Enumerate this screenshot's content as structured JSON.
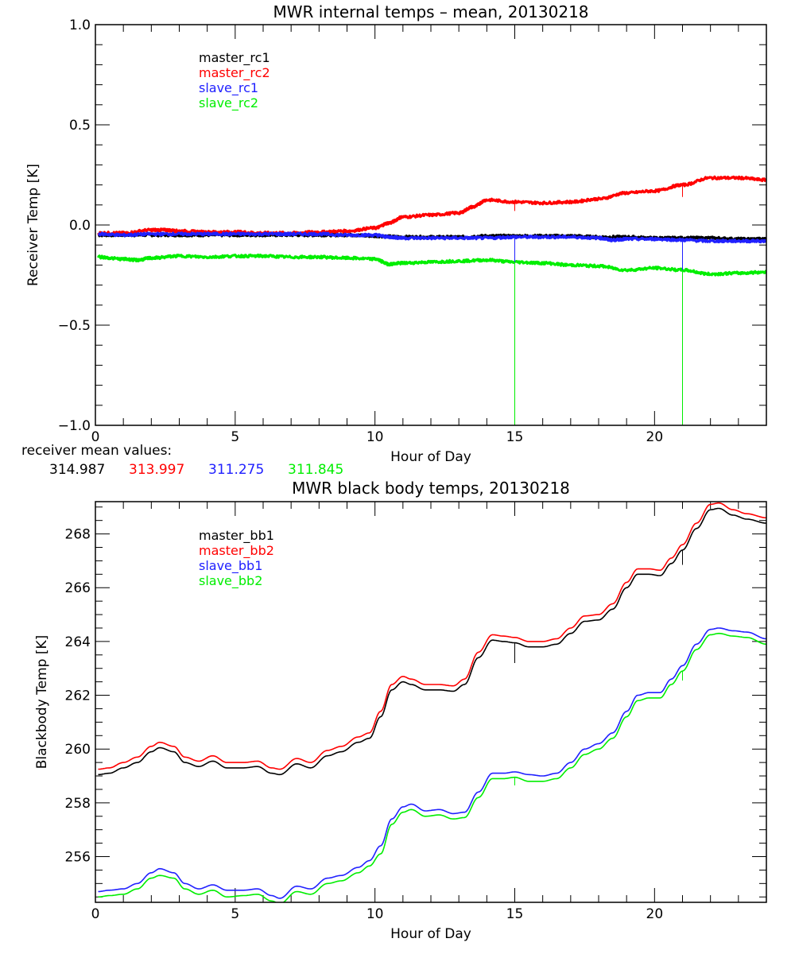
{
  "chart_data": [
    {
      "type": "line",
      "id": "receiver",
      "title": "MWR internal temps – mean, 20130218",
      "xlabel": "Hour of Day",
      "ylabel": "Receiver Temp [K]",
      "xlim": [
        0,
        24
      ],
      "ylim": [
        -1.0,
        1.0
      ],
      "xticks": [
        0,
        5,
        10,
        15,
        20
      ],
      "xtick_labels": [
        "0",
        "5",
        "10",
        "15",
        "20"
      ],
      "yticks": [
        1.0,
        0.5,
        0.0,
        -0.5,
        -1.0
      ],
      "ytick_labels": [
        "1.0",
        "0.5",
        "0.0",
        "−0.5",
        "−1.0"
      ],
      "grid": false,
      "legend_position": "top-left",
      "series": [
        {
          "name": "master_rc1",
          "color": "#000000",
          "x": [
            0.1,
            1,
            2,
            3,
            4,
            5,
            6,
            7,
            8,
            9,
            10,
            11,
            12,
            13,
            14,
            15,
            16,
            17,
            18,
            19,
            20,
            21,
            22,
            23,
            24
          ],
          "y": [
            -0.05,
            -0.05,
            -0.05,
            -0.05,
            -0.05,
            -0.05,
            -0.05,
            -0.05,
            -0.05,
            -0.05,
            -0.055,
            -0.06,
            -0.06,
            -0.06,
            -0.055,
            -0.055,
            -0.055,
            -0.055,
            -0.06,
            -0.06,
            -0.065,
            -0.065,
            -0.065,
            -0.07,
            -0.07
          ]
        },
        {
          "name": "master_rc2",
          "color": "#ff0000",
          "x": [
            0.1,
            1,
            2,
            2.5,
            3,
            4,
            5,
            6,
            7,
            8,
            9,
            10,
            10.5,
            11,
            12,
            13,
            13.5,
            14,
            15,
            16,
            17,
            18,
            19,
            20,
            21,
            22,
            23,
            24
          ],
          "y": [
            -0.04,
            -0.04,
            -0.025,
            -0.025,
            -0.03,
            -0.035,
            -0.035,
            -0.04,
            -0.04,
            -0.035,
            -0.03,
            -0.015,
            0.01,
            0.04,
            0.05,
            0.06,
            0.09,
            0.125,
            0.115,
            0.11,
            0.115,
            0.13,
            0.16,
            0.17,
            0.2,
            0.235,
            0.235,
            0.225
          ]
        },
        {
          "name": "slave_rc1",
          "color": "#2020ff",
          "x": [
            0.1,
            1,
            2,
            3,
            4,
            5,
            6,
            7,
            8,
            9,
            10,
            10.5,
            11,
            12,
            13,
            14,
            15,
            16,
            17,
            18,
            18.5,
            19,
            20,
            21,
            22,
            23,
            24
          ],
          "y": [
            -0.045,
            -0.05,
            -0.045,
            -0.045,
            -0.045,
            -0.045,
            -0.045,
            -0.045,
            -0.045,
            -0.05,
            -0.05,
            -0.06,
            -0.065,
            -0.065,
            -0.065,
            -0.065,
            -0.06,
            -0.06,
            -0.06,
            -0.065,
            -0.075,
            -0.07,
            -0.07,
            -0.075,
            -0.08,
            -0.08,
            -0.08
          ]
        },
        {
          "name": "slave_rc2",
          "color": "#00ee00",
          "x": [
            0.1,
            1,
            1.5,
            2,
            3,
            4,
            5,
            6,
            7,
            8,
            9,
            10,
            10.5,
            11,
            12,
            13,
            14,
            15,
            16,
            17,
            18,
            19,
            20,
            21,
            22,
            23,
            24
          ],
          "y": [
            -0.16,
            -0.17,
            -0.175,
            -0.165,
            -0.155,
            -0.16,
            -0.155,
            -0.155,
            -0.16,
            -0.16,
            -0.165,
            -0.17,
            -0.195,
            -0.19,
            -0.185,
            -0.18,
            -0.175,
            -0.185,
            -0.19,
            -0.2,
            -0.205,
            -0.225,
            -0.215,
            -0.225,
            -0.245,
            -0.24,
            -0.235
          ]
        }
      ],
      "spikes": [
        {
          "series": "master_rc2",
          "x": 15.0,
          "y_from": 0.115,
          "y_to": 0.07
        },
        {
          "series": "master_rc2",
          "x": 21.0,
          "y_from": 0.2,
          "y_to": 0.14
        },
        {
          "series": "slave_rc1",
          "x": 15.0,
          "y_from": -0.06,
          "y_to": -0.2
        },
        {
          "series": "slave_rc1",
          "x": 21.0,
          "y_from": -0.075,
          "y_to": -0.25
        },
        {
          "series": "slave_rc2",
          "x": 15.0,
          "y_from": -0.185,
          "y_to": -1.0
        },
        {
          "series": "slave_rc2",
          "x": 21.0,
          "y_from": -0.225,
          "y_to": -1.0
        }
      ],
      "annotation": {
        "label": "receiver mean values:",
        "values": [
          {
            "text": "314.987",
            "color": "#000000"
          },
          {
            "text": "313.997",
            "color": "#ff0000"
          },
          {
            "text": "311.275",
            "color": "#2020ff"
          },
          {
            "text": "311.845",
            "color": "#00ee00"
          }
        ]
      }
    },
    {
      "type": "line",
      "id": "blackbody",
      "title": "MWR black body temps, 20130218",
      "xlabel": "Hour of Day",
      "ylabel": "Blackbody Temp [K]",
      "xlim": [
        0,
        24
      ],
      "ylim": [
        254.3,
        269.2
      ],
      "xticks": [
        0,
        5,
        10,
        15,
        20
      ],
      "xtick_labels": [
        "0",
        "5",
        "10",
        "15",
        "20"
      ],
      "yticks": [
        256,
        258,
        260,
        262,
        264,
        266,
        268
      ],
      "ytick_labels": [
        "256",
        "258",
        "260",
        "262",
        "264",
        "266",
        "268"
      ],
      "grid": false,
      "legend_position": "top-left",
      "series": [
        {
          "name": "master_bb1",
          "color": "#000000",
          "x": [
            0.1,
            0.5,
            1,
            1.5,
            2,
            2.3,
            2.8,
            3.2,
            3.7,
            4.2,
            4.7,
            5.3,
            5.8,
            6.3,
            6.6,
            7.2,
            7.7,
            8.3,
            8.8,
            9.4,
            9.8,
            10.2,
            10.6,
            11.0,
            11.3,
            11.8,
            12.3,
            12.8,
            13.2,
            13.7,
            14.2,
            14.6,
            15.0,
            15.5,
            16.0,
            16.5,
            17.0,
            17.5,
            18.0,
            18.5,
            19.0,
            19.4,
            19.8,
            20.2,
            20.6,
            21.0,
            21.5,
            22.0,
            22.3,
            22.8,
            23.3,
            24.0
          ],
          "y": [
            259.05,
            259.1,
            259.3,
            259.5,
            259.9,
            260.05,
            259.9,
            259.5,
            259.35,
            259.55,
            259.3,
            259.3,
            259.35,
            259.1,
            259.05,
            259.45,
            259.3,
            259.75,
            259.9,
            260.25,
            260.4,
            261.2,
            262.2,
            262.5,
            262.4,
            262.2,
            262.2,
            262.15,
            262.4,
            263.4,
            264.05,
            264.0,
            263.95,
            263.8,
            263.8,
            263.9,
            264.3,
            264.75,
            264.8,
            265.2,
            266.0,
            266.5,
            266.5,
            266.45,
            266.9,
            267.4,
            268.2,
            268.9,
            268.95,
            268.7,
            268.55,
            268.4
          ]
        },
        {
          "name": "master_bb2",
          "color": "#ff0000",
          "x": [
            0.1,
            0.5,
            1,
            1.5,
            2,
            2.3,
            2.8,
            3.2,
            3.7,
            4.2,
            4.7,
            5.3,
            5.8,
            6.3,
            6.6,
            7.2,
            7.7,
            8.3,
            8.8,
            9.4,
            9.8,
            10.2,
            10.6,
            11.0,
            11.3,
            11.8,
            12.3,
            12.8,
            13.2,
            13.7,
            14.2,
            14.6,
            15.0,
            15.5,
            16.0,
            16.5,
            17.0,
            17.5,
            18.0,
            18.5,
            19.0,
            19.4,
            19.8,
            20.2,
            20.6,
            21.0,
            21.5,
            22.0,
            22.3,
            22.8,
            23.3,
            24.0
          ],
          "y": [
            259.25,
            259.3,
            259.5,
            259.7,
            260.1,
            260.25,
            260.1,
            259.7,
            259.55,
            259.75,
            259.5,
            259.5,
            259.55,
            259.3,
            259.25,
            259.65,
            259.5,
            259.95,
            260.1,
            260.45,
            260.6,
            261.4,
            262.4,
            262.7,
            262.6,
            262.4,
            262.4,
            262.35,
            262.6,
            263.6,
            264.25,
            264.2,
            264.15,
            264.0,
            264.0,
            264.1,
            264.5,
            264.95,
            265.0,
            265.4,
            266.2,
            266.7,
            266.7,
            266.65,
            267.1,
            267.6,
            268.4,
            269.1,
            269.15,
            268.9,
            268.75,
            268.6
          ]
        },
        {
          "name": "slave_bb1",
          "color": "#2020ff",
          "x": [
            0.1,
            0.5,
            1,
            1.5,
            2,
            2.3,
            2.8,
            3.2,
            3.7,
            4.2,
            4.7,
            5.3,
            5.8,
            6.3,
            6.6,
            7.2,
            7.7,
            8.3,
            8.8,
            9.4,
            9.8,
            10.2,
            10.6,
            11.0,
            11.3,
            11.8,
            12.3,
            12.8,
            13.2,
            13.7,
            14.2,
            14.6,
            15.0,
            15.5,
            16.0,
            16.5,
            17.0,
            17.5,
            18.0,
            18.5,
            19.0,
            19.4,
            19.8,
            20.2,
            20.6,
            21.0,
            21.5,
            22.0,
            22.3,
            22.8,
            23.3,
            24.0
          ],
          "y": [
            254.7,
            254.75,
            254.8,
            255.0,
            255.4,
            255.55,
            255.4,
            255.0,
            254.8,
            254.95,
            254.75,
            254.75,
            254.8,
            254.55,
            254.45,
            254.9,
            254.8,
            255.2,
            255.3,
            255.6,
            255.85,
            256.4,
            257.4,
            257.85,
            257.95,
            257.7,
            257.75,
            257.6,
            257.65,
            258.4,
            259.1,
            259.1,
            259.15,
            259.05,
            259.0,
            259.1,
            259.5,
            260.0,
            260.2,
            260.6,
            261.4,
            262.0,
            262.1,
            262.1,
            262.6,
            263.1,
            263.9,
            264.45,
            264.5,
            264.4,
            264.35,
            264.1
          ]
        },
        {
          "name": "slave_bb2",
          "color": "#00ee00",
          "x": [
            0.1,
            0.5,
            1,
            1.5,
            2,
            2.3,
            2.8,
            3.2,
            3.7,
            4.2,
            4.7,
            5.3,
            5.8,
            6.3,
            6.6,
            7.2,
            7.7,
            8.3,
            8.8,
            9.4,
            9.8,
            10.2,
            10.6,
            11.0,
            11.3,
            11.8,
            12.3,
            12.8,
            13.2,
            13.7,
            14.2,
            14.6,
            15.0,
            15.5,
            16.0,
            16.5,
            17.0,
            17.5,
            18.0,
            18.5,
            19.0,
            19.4,
            19.8,
            20.2,
            20.6,
            21.0,
            21.5,
            22.0,
            22.3,
            22.8,
            23.3,
            24.0
          ],
          "y": [
            254.5,
            254.55,
            254.6,
            254.8,
            255.2,
            255.3,
            255.2,
            254.8,
            254.6,
            254.75,
            254.5,
            254.55,
            254.6,
            254.35,
            254.25,
            254.7,
            254.6,
            255.0,
            255.1,
            255.4,
            255.65,
            256.1,
            257.2,
            257.65,
            257.75,
            257.5,
            257.55,
            257.4,
            257.45,
            258.2,
            258.9,
            258.9,
            258.95,
            258.8,
            258.8,
            258.9,
            259.3,
            259.8,
            260.0,
            260.4,
            261.2,
            261.8,
            261.9,
            261.9,
            262.4,
            262.9,
            263.7,
            264.25,
            264.3,
            264.2,
            264.15,
            263.9
          ]
        }
      ],
      "spikes": [
        {
          "series": "master_bb1",
          "x": 15.0,
          "y_from": 263.95,
          "y_to": 263.2
        },
        {
          "series": "master_bb1",
          "x": 21.0,
          "y_from": 267.4,
          "y_to": 266.85
        },
        {
          "series": "slave_bb2",
          "x": 15.0,
          "y_from": 258.95,
          "y_to": 258.65
        },
        {
          "series": "slave_bb2",
          "x": 21.0,
          "y_from": 262.9,
          "y_to": 262.55
        }
      ]
    }
  ]
}
